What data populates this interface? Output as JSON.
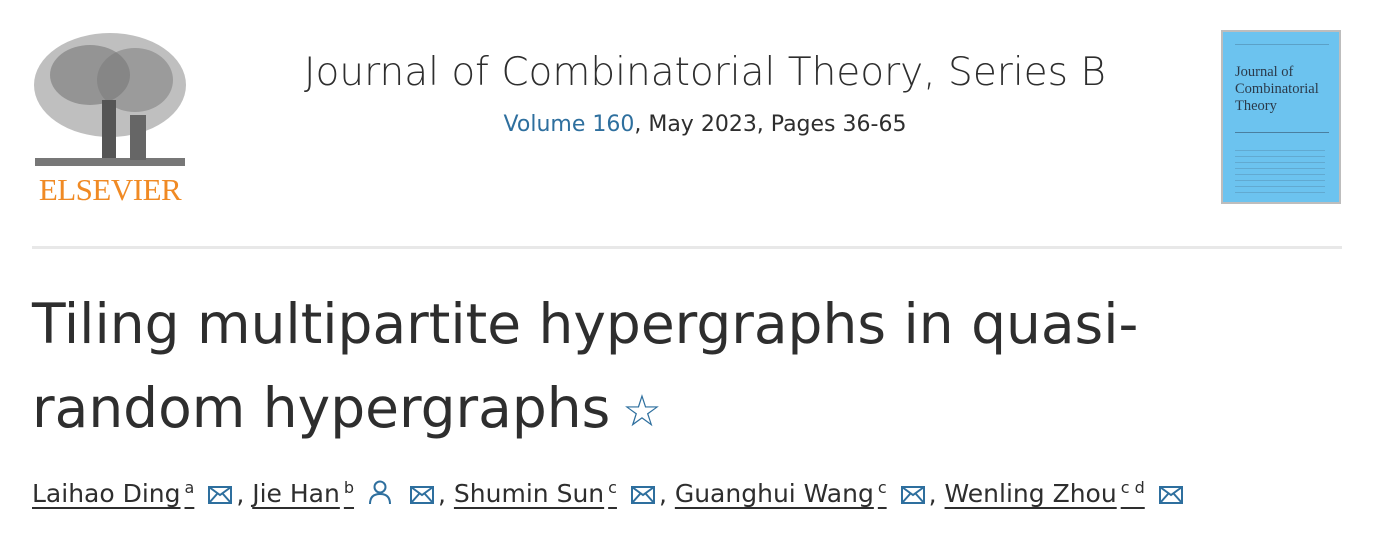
{
  "publisher": {
    "logo_text": "ELSEVIER"
  },
  "journal": {
    "title": "Journal of Combinatorial Theory, Series B",
    "volume_link": "Volume 160",
    "issue_info": ", May 2023, Pages 36-65"
  },
  "cover": {
    "title_lines": [
      "Journal of",
      "Combinatorial",
      "Theory"
    ]
  },
  "article": {
    "title": "Tiling multipartite hypergraphs in quasi-random hypergraphs",
    "star_icon": "star-icon"
  },
  "authors": [
    {
      "name": "Laihao Ding",
      "aff": "a",
      "icons": [
        "mail-icon"
      ]
    },
    {
      "name": "Jie Han",
      "aff": "b",
      "icons": [
        "person-icon",
        "mail-icon"
      ]
    },
    {
      "name": "Shumin Sun",
      "aff": "c",
      "icons": [
        "mail-icon"
      ]
    },
    {
      "name": "Guanghui Wang",
      "aff": "c",
      "icons": [
        "mail-icon"
      ]
    },
    {
      "name": "Wenling Zhou",
      "aff": "c d",
      "icons": [
        "mail-icon"
      ]
    }
  ],
  "colors": {
    "link": "#2e6f9e",
    "elsevier_orange": "#f08a24",
    "cover_blue": "#6cc3ef"
  }
}
